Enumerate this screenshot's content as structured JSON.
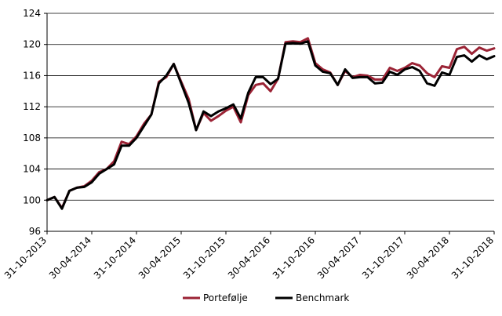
{
  "chart_data": {
    "type": "line",
    "title": "",
    "xlabel": "",
    "ylabel": "",
    "ylim": [
      96,
      124
    ],
    "yticks": [
      96,
      100,
      104,
      108,
      112,
      116,
      120,
      124
    ],
    "grid": true,
    "legend_position": "bottom-center",
    "x_tick_labels": [
      "31-10-2013",
      "30-04-2014",
      "31-10-2014",
      "30-04-2015",
      "31-10-2015",
      "30-04-2016",
      "31-10-2016",
      "30-04-2017",
      "31-10-2017",
      "30-04-2018",
      "31-10-2018"
    ],
    "x": [
      "2013-10",
      "2013-11",
      "2013-12",
      "2014-01",
      "2014-02",
      "2014-03",
      "2014-04",
      "2014-05",
      "2014-06",
      "2014-07",
      "2014-08",
      "2014-09",
      "2014-10",
      "2014-11",
      "2014-12",
      "2015-01",
      "2015-02",
      "2015-03",
      "2015-04",
      "2015-05",
      "2015-06",
      "2015-07",
      "2015-08",
      "2015-09",
      "2015-10",
      "2015-11",
      "2015-12",
      "2016-01",
      "2016-02",
      "2016-03",
      "2016-04",
      "2016-05",
      "2016-06",
      "2016-07",
      "2016-08",
      "2016-09",
      "2016-10",
      "2016-11",
      "2016-12",
      "2017-01",
      "2017-02",
      "2017-03",
      "2017-04",
      "2017-05",
      "2017-06",
      "2017-07",
      "2017-08",
      "2017-09",
      "2017-10",
      "2017-11",
      "2017-12",
      "2018-01",
      "2018-02",
      "2018-03",
      "2018-04",
      "2018-05",
      "2018-06",
      "2018-07",
      "2018-08",
      "2018-09",
      "2018-10"
    ],
    "series": [
      {
        "name": "Portefølje",
        "color": "#9b2335",
        "values": [
          100.0,
          100.4,
          99.0,
          101.2,
          101.6,
          101.8,
          102.5,
          103.6,
          104.0,
          105.0,
          107.5,
          107.2,
          108.2,
          109.8,
          111.0,
          115.2,
          115.8,
          117.5,
          115.2,
          113.0,
          109.0,
          111.2,
          110.2,
          110.8,
          111.5,
          112.0,
          110.0,
          113.5,
          114.8,
          115.0,
          114.0,
          115.6,
          120.3,
          120.4,
          120.3,
          120.8,
          117.6,
          116.8,
          116.4,
          114.8,
          116.6,
          115.8,
          116.1,
          116.0,
          115.5,
          115.5,
          117.0,
          116.6,
          117.0,
          117.6,
          117.3,
          116.3,
          115.8,
          117.2,
          117.0,
          119.4,
          119.7,
          118.8,
          119.6,
          119.2,
          119.5
        ]
      },
      {
        "name": "Benchmark",
        "color": "#000000",
        "values": [
          100.0,
          100.4,
          98.9,
          101.2,
          101.6,
          101.7,
          102.3,
          103.4,
          104.0,
          104.6,
          107.0,
          107.0,
          108.0,
          109.5,
          111.0,
          115.0,
          116.0,
          117.5,
          115.0,
          112.5,
          109.0,
          111.4,
          110.8,
          111.4,
          111.8,
          112.3,
          110.5,
          113.8,
          115.8,
          115.8,
          114.9,
          115.6,
          120.1,
          120.2,
          120.1,
          120.4,
          117.3,
          116.5,
          116.3,
          114.8,
          116.8,
          115.7,
          115.8,
          115.8,
          115.0,
          115.1,
          116.5,
          116.1,
          116.8,
          117.1,
          116.6,
          115.0,
          114.7,
          116.4,
          116.1,
          118.4,
          118.6,
          117.8,
          118.6,
          118.1,
          118.5
        ]
      }
    ]
  }
}
